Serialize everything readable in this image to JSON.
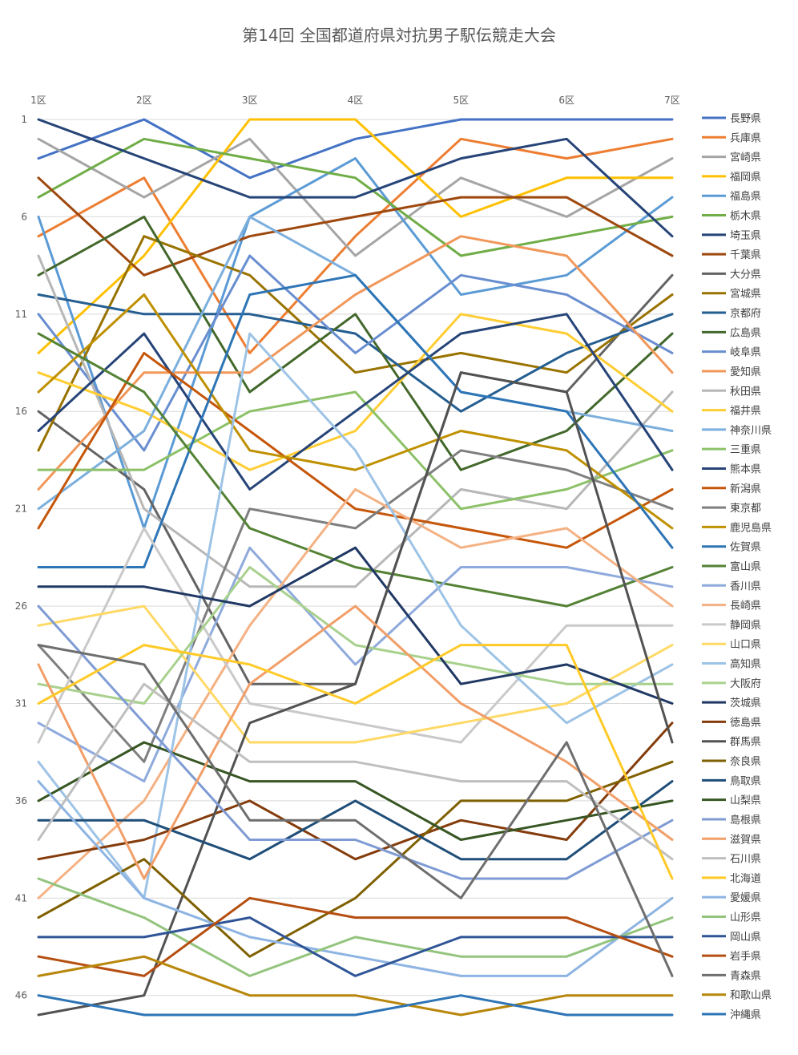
{
  "chart_data": {
    "type": "line",
    "title": "第14回 全国都道府県対抗男子駅伝競走大会",
    "categories": [
      "1区",
      "2区",
      "3区",
      "4区",
      "5区",
      "6区",
      "7区"
    ],
    "y_ticks": [
      "1",
      "6",
      "11",
      "16",
      "21",
      "26",
      "31",
      "36",
      "41",
      "46"
    ],
    "y_tick_values": [
      1,
      6,
      11,
      16,
      21,
      26,
      31,
      36,
      41,
      46
    ],
    "ylim": [
      1,
      47
    ],
    "y_reversed": true,
    "grid": true,
    "legend_position": "right",
    "series": [
      {
        "name": "長野県",
        "color": "#4472C4",
        "values": [
          3,
          1,
          4,
          2,
          1,
          1,
          1
        ]
      },
      {
        "name": "兵庫県",
        "color": "#ED7D31",
        "values": [
          7,
          4,
          13,
          7,
          2,
          3,
          2
        ]
      },
      {
        "name": "宮崎県",
        "color": "#A5A5A5",
        "values": [
          2,
          5,
          2,
          8,
          4,
          6,
          3
        ]
      },
      {
        "name": "福岡県",
        "color": "#FFC000",
        "values": [
          13,
          8,
          1,
          1,
          6,
          4,
          4
        ]
      },
      {
        "name": "福島県",
        "color": "#5B9BD5",
        "values": [
          6,
          22,
          6,
          3,
          10,
          9,
          5
        ]
      },
      {
        "name": "栃木県",
        "color": "#70AD47",
        "values": [
          5,
          2,
          3,
          4,
          8,
          7,
          6
        ]
      },
      {
        "name": "埼玉県",
        "color": "#264478",
        "values": [
          1,
          3,
          5,
          5,
          3,
          2,
          7
        ]
      },
      {
        "name": "千葉県",
        "color": "#9E480E",
        "values": [
          4,
          9,
          7,
          6,
          5,
          5,
          8
        ]
      },
      {
        "name": "大分県",
        "color": "#636363",
        "values": [
          16,
          20,
          30,
          30,
          14,
          15,
          9
        ]
      },
      {
        "name": "宮城県",
        "color": "#997300",
        "values": [
          18,
          7,
          9,
          14,
          13,
          14,
          10
        ]
      },
      {
        "name": "京都府",
        "color": "#255E91",
        "values": [
          10,
          11,
          11,
          12,
          16,
          13,
          11
        ]
      },
      {
        "name": "広島県",
        "color": "#43682B",
        "values": [
          9,
          6,
          15,
          11,
          19,
          17,
          12
        ]
      },
      {
        "name": "岐阜県",
        "color": "#698ED0",
        "values": [
          11,
          18,
          8,
          13,
          9,
          10,
          13
        ]
      },
      {
        "name": "愛知県",
        "color": "#F1975A",
        "values": [
          20,
          14,
          14,
          10,
          7,
          8,
          14
        ]
      },
      {
        "name": "秋田県",
        "color": "#B7B7B7",
        "values": [
          8,
          21,
          25,
          25,
          20,
          21,
          15
        ]
      },
      {
        "name": "福井県",
        "color": "#FFCD33",
        "values": [
          14,
          16,
          19,
          17,
          11,
          12,
          16
        ]
      },
      {
        "name": "神奈川県",
        "color": "#7CAFDD",
        "values": [
          21,
          17,
          6,
          9,
          15,
          16,
          17
        ]
      },
      {
        "name": "三重県",
        "color": "#8CC168",
        "values": [
          19,
          19,
          16,
          15,
          21,
          20,
          18
        ]
      },
      {
        "name": "熊本県",
        "color": "#264478",
        "values": [
          17,
          12,
          20,
          16,
          12,
          11,
          19
        ]
      },
      {
        "name": "新潟県",
        "color": "#C5560A",
        "values": [
          22,
          13,
          17,
          21,
          22,
          23,
          20
        ]
      },
      {
        "name": "東京都",
        "color": "#7F7F7F",
        "values": [
          28,
          34,
          21,
          22,
          18,
          19,
          21
        ]
      },
      {
        "name": "鹿児島県",
        "color": "#BF9000",
        "values": [
          15,
          10,
          18,
          19,
          17,
          18,
          22
        ]
      },
      {
        "name": "佐賀県",
        "color": "#2E75B6",
        "values": [
          24,
          24,
          10,
          9,
          15,
          16,
          23
        ]
      },
      {
        "name": "富山県",
        "color": "#548235",
        "values": [
          12,
          15,
          22,
          24,
          25,
          26,
          24
        ]
      },
      {
        "name": "香川県",
        "color": "#8FAADC",
        "values": [
          32,
          35,
          23,
          29,
          24,
          24,
          25
        ]
      },
      {
        "name": "長崎県",
        "color": "#F4B183",
        "values": [
          41,
          36,
          27,
          20,
          23,
          22,
          26
        ]
      },
      {
        "name": "静岡県",
        "color": "#C9C9C9",
        "values": [
          33,
          22,
          31,
          32,
          33,
          27,
          27
        ]
      },
      {
        "name": "山口県",
        "color": "#FFD966",
        "values": [
          27,
          26,
          33,
          33,
          32,
          31,
          28
        ]
      },
      {
        "name": "高知県",
        "color": "#9DC3E6",
        "values": [
          34,
          41,
          12,
          18,
          27,
          32,
          29
        ]
      },
      {
        "name": "大阪府",
        "color": "#A9D18E",
        "values": [
          30,
          31,
          24,
          28,
          29,
          30,
          30
        ]
      },
      {
        "name": "茨城県",
        "color": "#203864",
        "values": [
          25,
          25,
          26,
          23,
          30,
          29,
          31
        ]
      },
      {
        "name": "徳島県",
        "color": "#843C0C",
        "values": [
          39,
          38,
          36,
          39,
          37,
          38,
          32
        ]
      },
      {
        "name": "群馬県",
        "color": "#525252",
        "values": [
          47,
          46,
          32,
          30,
          14,
          15,
          33
        ]
      },
      {
        "name": "奈良県",
        "color": "#7F6000",
        "values": [
          42,
          39,
          44,
          41,
          36,
          36,
          34
        ]
      },
      {
        "name": "鳥取県",
        "color": "#1F4E79",
        "values": [
          37,
          37,
          39,
          36,
          39,
          39,
          35
        ]
      },
      {
        "name": "山梨県",
        "color": "#375623",
        "values": [
          36,
          33,
          35,
          35,
          38,
          37,
          36
        ]
      },
      {
        "name": "島根県",
        "color": "#7F9BD4",
        "values": [
          26,
          32,
          38,
          38,
          40,
          40,
          37
        ]
      },
      {
        "name": "滋賀県",
        "color": "#F19E68",
        "values": [
          29,
          40,
          30,
          26,
          31,
          34,
          38
        ]
      },
      {
        "name": "石川県",
        "color": "#BFBFBF",
        "values": [
          38,
          30,
          34,
          34,
          35,
          35,
          39
        ]
      },
      {
        "name": "北海道",
        "color": "#FFCA28",
        "values": [
          31,
          28,
          29,
          31,
          28,
          28,
          40
        ]
      },
      {
        "name": "愛媛県",
        "color": "#8DB4E2",
        "values": [
          35,
          41,
          43,
          44,
          45,
          45,
          41
        ]
      },
      {
        "name": "山形県",
        "color": "#93C47D",
        "values": [
          40,
          42,
          45,
          43,
          44,
          44,
          42
        ]
      },
      {
        "name": "岡山県",
        "color": "#2F5597",
        "values": [
          43,
          43,
          42,
          45,
          43,
          43,
          43
        ]
      },
      {
        "name": "岩手県",
        "color": "#B54E10",
        "values": [
          44,
          45,
          41,
          42,
          42,
          42,
          44
        ]
      },
      {
        "name": "青森県",
        "color": "#6E6E6E",
        "values": [
          28,
          29,
          37,
          37,
          41,
          33,
          45
        ]
      },
      {
        "name": "和歌山県",
        "color": "#B8860B",
        "values": [
          45,
          44,
          46,
          46,
          47,
          46,
          46
        ]
      },
      {
        "name": "沖縄県",
        "color": "#2E75B6",
        "values": [
          46,
          47,
          47,
          47,
          46,
          47,
          47
        ]
      }
    ]
  }
}
